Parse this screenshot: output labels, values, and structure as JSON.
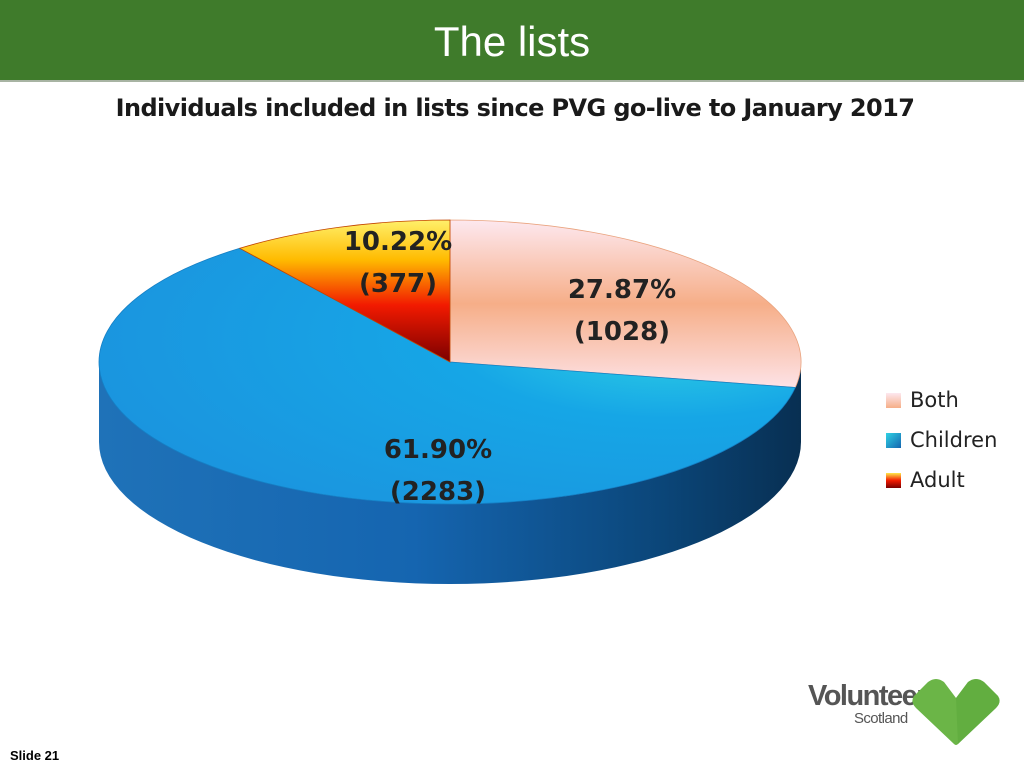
{
  "slide": {
    "title": "The lists",
    "number_label": "Slide 21"
  },
  "chart_data": {
    "type": "pie",
    "title": "Individuals included in lists since PVG go-live to January 2017",
    "slices": [
      {
        "name": "Both",
        "percent": 27.87,
        "count": 1028,
        "label_pct": "27.87%",
        "label_count": "(1028)",
        "color": "#f6b48e"
      },
      {
        "name": "Children",
        "percent": 61.9,
        "count": 2283,
        "label_pct": "61.90%",
        "label_count": "(2283)",
        "color": "#1e9fe4"
      },
      {
        "name": "Adult",
        "percent": 10.22,
        "count": 377,
        "label_pct": "10.22%",
        "label_count": "(377)",
        "color": "#f06a00"
      }
    ],
    "legend_position": "right",
    "style": "3d"
  },
  "legend": {
    "items": [
      "Both",
      "Children",
      "Adult"
    ]
  },
  "logo": {
    "line1": "Volunteer",
    "line2": "Scotland",
    "heart_color": "#6bb547"
  }
}
